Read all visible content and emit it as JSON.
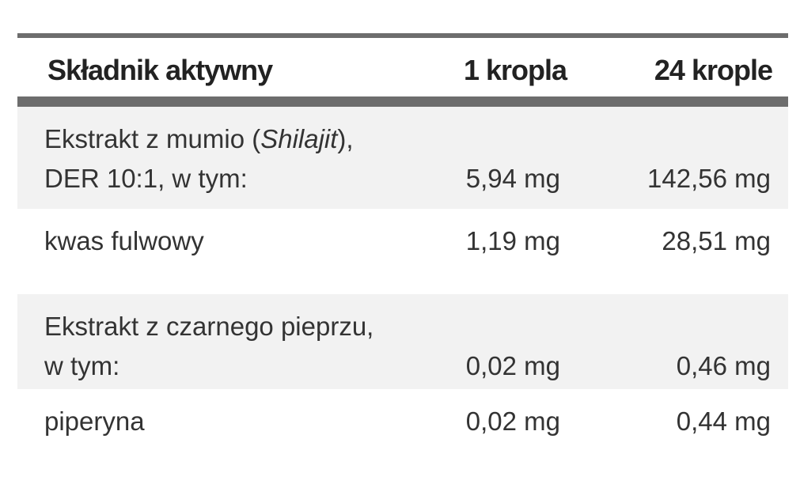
{
  "table": {
    "header": [
      "Składnik aktywny",
      "1 kropla",
      "24 krople"
    ],
    "rows": [
      {
        "name": [
          [
            {
              "text": "Ekstrakt z mumio ("
            },
            {
              "text": "Shilajit",
              "italic": true
            },
            {
              "text": "),"
            }
          ],
          [
            {
              "text": "DER 10:1, w tym:"
            }
          ]
        ],
        "values": [
          "5,94 mg",
          "142,56 mg"
        ],
        "shaded": true
      },
      {
        "name": [
          [
            {
              "text": "kwas fulwowy"
            }
          ]
        ],
        "values": [
          "1,19 mg",
          "28,51 mg"
        ],
        "shaded": false
      },
      {
        "name": [
          [
            {
              "text": "Ekstrakt z czarnego pieprzu,"
            }
          ],
          [
            {
              "text": "w tym:"
            }
          ]
        ],
        "values": [
          "0,02 mg",
          "0,46 mg"
        ],
        "shaded": true
      },
      {
        "name": [
          [
            {
              "text": "piperyna"
            }
          ]
        ],
        "values": [
          "0,02 mg",
          "0,44 mg"
        ],
        "shaded": false
      }
    ]
  }
}
